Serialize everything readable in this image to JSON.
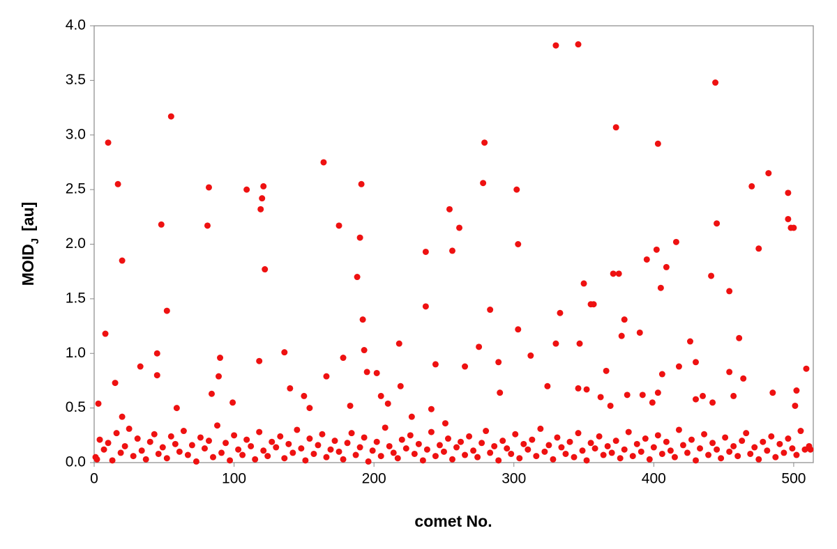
{
  "chart_data": {
    "type": "scatter",
    "x_label": "comet No.",
    "y_label": "MOID",
    "y_label_sub": "J",
    "y_label_unit": "[au]",
    "color": "#ee1111",
    "xlim": [
      0,
      514
    ],
    "ylim": [
      0,
      4.0
    ],
    "xticks": [
      0,
      100,
      200,
      300,
      400,
      500
    ],
    "yticks": [
      {
        "value": 0,
        "label": "0.0"
      },
      {
        "value": 0.5,
        "label": "0.5"
      },
      {
        "value": 1,
        "label": "1.0"
      },
      {
        "value": 1.5,
        "label": "1.5"
      },
      {
        "value": 2,
        "label": "2.0"
      },
      {
        "value": 2.5,
        "label": "2.5"
      },
      {
        "value": 3,
        "label": "3.0"
      },
      {
        "value": 3.5,
        "label": "3.5"
      },
      {
        "value": 4,
        "label": "4.0"
      }
    ],
    "x": [
      1,
      4,
      7,
      10,
      13,
      16,
      19,
      22,
      25,
      28,
      31,
      34,
      37,
      40,
      43,
      46,
      49,
      52,
      55,
      58,
      61,
      64,
      67,
      70,
      73,
      76,
      79,
      82,
      85,
      88,
      91,
      94,
      97,
      100,
      103,
      106,
      109,
      112,
      115,
      118,
      121,
      124,
      127,
      130,
      133,
      136,
      139,
      142,
      145,
      148,
      151,
      154,
      157,
      160,
      163,
      166,
      169,
      172,
      175,
      178,
      181,
      184,
      187,
      190,
      193,
      196,
      199,
      202,
      205,
      208,
      211,
      214,
      217,
      220,
      223,
      226,
      229,
      232,
      235,
      238,
      241,
      244,
      247,
      250,
      253,
      256,
      259,
      262,
      265,
      268,
      271,
      274,
      277,
      280,
      283,
      286,
      289,
      292,
      295,
      298,
      301,
      304,
      307,
      310,
      313,
      316,
      319,
      322,
      325,
      328,
      331,
      334,
      337,
      340,
      343,
      346,
      349,
      352,
      355,
      358,
      361,
      364,
      367,
      370,
      373,
      376,
      379,
      382,
      385,
      388,
      391,
      394,
      397,
      400,
      403,
      406,
      409,
      412,
      415,
      418,
      421,
      424,
      427,
      430,
      433,
      436,
      439,
      442,
      445,
      448,
      451,
      454,
      457,
      460,
      463,
      466,
      469,
      472,
      475,
      478,
      481,
      484,
      487,
      490,
      493,
      496,
      499,
      502,
      505,
      508,
      511,
      2,
      3,
      8,
      10,
      15,
      17,
      20,
      20,
      33,
      45,
      45,
      48,
      52,
      55,
      59,
      81,
      82,
      84,
      89,
      90,
      99,
      109,
      118,
      119,
      120,
      121,
      122,
      136,
      140,
      150,
      154,
      164,
      166,
      175,
      178,
      183,
      188,
      190,
      191,
      192,
      193,
      195,
      202,
      205,
      210,
      218,
      219,
      227,
      237,
      237,
      241,
      244,
      251,
      254,
      256,
      261,
      265,
      275,
      278,
      279,
      283,
      289,
      290,
      302,
      303,
      303,
      312,
      324,
      330,
      330,
      333,
      346,
      347,
      346,
      350,
      352,
      355,
      357,
      362,
      366,
      369,
      371,
      373,
      375,
      377,
      379,
      381,
      390,
      392,
      395,
      399,
      402,
      403,
      403,
      405,
      406,
      409,
      416,
      418,
      426,
      430,
      430,
      435,
      441,
      442,
      444,
      445,
      454,
      454,
      457,
      461,
      464,
      470,
      475,
      482,
      485,
      496,
      496,
      498,
      500,
      501,
      502,
      509,
      512
    ],
    "values": [
      0.05,
      0.21,
      0.12,
      0.18,
      0.02,
      0.27,
      0.09,
      0.15,
      0.31,
      0.06,
      0.22,
      0.11,
      0.03,
      0.19,
      0.26,
      0.08,
      0.14,
      0.04,
      0.24,
      0.17,
      0.1,
      0.29,
      0.07,
      0.16,
      0.01,
      0.23,
      0.13,
      0.2,
      0.05,
      0.34,
      0.09,
      0.18,
      0.02,
      0.25,
      0.12,
      0.07,
      0.21,
      0.15,
      0.03,
      0.28,
      0.11,
      0.06,
      0.19,
      0.14,
      0.24,
      0.04,
      0.17,
      0.09,
      0.3,
      0.13,
      0.02,
      0.22,
      0.08,
      0.16,
      0.26,
      0.05,
      0.12,
      0.2,
      0.1,
      0.03,
      0.18,
      0.27,
      0.07,
      0.14,
      0.23,
      0.01,
      0.11,
      0.19,
      0.06,
      0.32,
      0.15,
      0.09,
      0.04,
      0.21,
      0.13,
      0.25,
      0.08,
      0.17,
      0.02,
      0.12,
      0.28,
      0.06,
      0.16,
      0.1,
      0.22,
      0.03,
      0.14,
      0.19,
      0.07,
      0.24,
      0.11,
      0.05,
      0.18,
      0.29,
      0.09,
      0.15,
      0.02,
      0.2,
      0.13,
      0.08,
      0.26,
      0.04,
      0.17,
      0.12,
      0.21,
      0.06,
      0.31,
      0.1,
      0.16,
      0.03,
      0.23,
      0.14,
      0.08,
      0.19,
      0.05,
      0.27,
      0.11,
      0.02,
      0.18,
      0.13,
      0.24,
      0.07,
      0.15,
      0.09,
      0.2,
      0.04,
      0.12,
      0.28,
      0.06,
      0.17,
      0.1,
      0.22,
      0.03,
      0.14,
      0.25,
      0.08,
      0.19,
      0.11,
      0.05,
      0.3,
      0.16,
      0.09,
      0.21,
      0.02,
      0.13,
      0.26,
      0.07,
      0.18,
      0.12,
      0.04,
      0.23,
      0.1,
      0.15,
      0.06,
      0.2,
      0.27,
      0.08,
      0.14,
      0.03,
      0.19,
      0.11,
      0.24,
      0.05,
      0.17,
      0.09,
      0.22,
      0.13,
      0.07,
      0.29,
      0.12,
      0.15,
      0.03,
      0.54,
      1.18,
      2.93,
      0.73,
      2.55,
      1.85,
      0.42,
      0.88,
      1.0,
      0.8,
      2.18,
      1.39,
      3.17,
      0.5,
      2.17,
      2.52,
      0.63,
      0.79,
      0.96,
      0.55,
      2.5,
      0.93,
      2.32,
      2.42,
      2.53,
      1.77,
      1.01,
      0.68,
      0.61,
      0.5,
      2.75,
      0.79,
      2.17,
      0.96,
      0.52,
      1.7,
      2.06,
      2.55,
      1.31,
      1.03,
      0.83,
      0.82,
      0.61,
      0.54,
      1.09,
      0.7,
      0.42,
      1.93,
      1.43,
      0.49,
      0.9,
      0.36,
      2.32,
      1.94,
      2.15,
      0.88,
      1.06,
      2.56,
      2.93,
      1.4,
      0.92,
      0.64,
      2.5,
      2.0,
      1.22,
      0.98,
      0.7,
      3.82,
      1.09,
      1.37,
      3.83,
      1.09,
      0.68,
      1.64,
      0.67,
      1.45,
      1.45,
      0.6,
      0.84,
      0.52,
      1.73,
      3.07,
      1.73,
      1.16,
      1.31,
      0.62,
      1.19,
      0.62,
      1.86,
      0.55,
      1.95,
      0.64,
      2.92,
      1.6,
      0.81,
      1.79,
      2.02,
      0.88,
      1.11,
      0.92,
      0.58,
      0.61,
      1.71,
      0.55,
      3.48,
      2.19,
      1.57,
      0.83,
      0.61,
      1.14,
      0.77,
      2.53,
      1.96,
      2.65,
      0.64,
      2.47,
      2.23,
      2.15,
      2.15,
      0.52,
      0.66,
      0.86,
      0.12
    ]
  }
}
